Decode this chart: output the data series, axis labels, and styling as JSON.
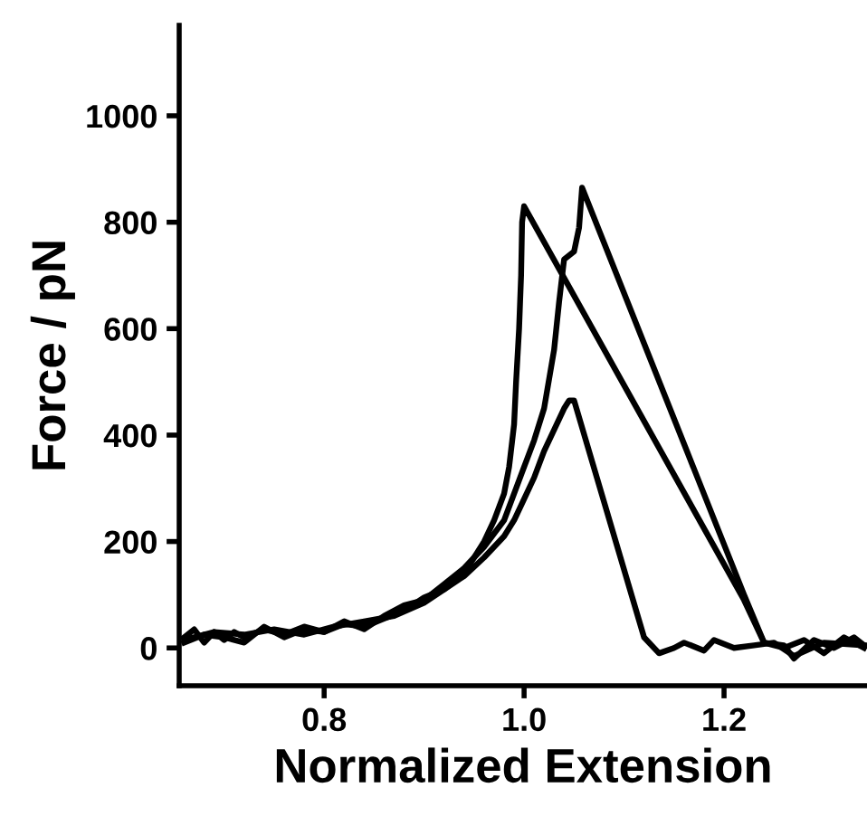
{
  "chart_data": {
    "type": "line",
    "xlabel": "Normalized Extension",
    "ylabel": "Force / pN",
    "xlim": [
      0.655,
      1.343
    ],
    "ylim": [
      -71,
      1170
    ],
    "xticks": [
      {
        "value": 0.8,
        "label": "0.8"
      },
      {
        "value": 1.0,
        "label": "1.0"
      },
      {
        "value": 1.2,
        "label": "1.2"
      }
    ],
    "yticks": [
      0,
      200,
      400,
      600,
      800,
      1000
    ],
    "grid": false,
    "legend": false,
    "marker": "none",
    "line_style": "solid",
    "series": [
      {
        "color": "#000000",
        "x": [
          0.66,
          0.67,
          0.68,
          0.69,
          0.7,
          0.71,
          0.72,
          0.74,
          0.76,
          0.78,
          0.8,
          0.82,
          0.84,
          0.86,
          0.88,
          0.9,
          0.92,
          0.94,
          0.95,
          0.96,
          0.97,
          0.98,
          0.985,
          0.99,
          0.992,
          0.995,
          0.997,
          0.998,
          1.0,
          1.22,
          1.24,
          1.26,
          1.27,
          1.29,
          1.31,
          1.33,
          1.34
        ],
        "values": [
          20,
          35,
          10,
          30,
          15,
          30,
          20,
          35,
          25,
          40,
          30,
          45,
          40,
          55,
          70,
          95,
          110,
          140,
          170,
          200,
          240,
          290,
          340,
          420,
          500,
          600,
          700,
          800,
          830,
          90,
          10,
          5,
          -20,
          15,
          0,
          20,
          5
        ]
      },
      {
        "color": "#000000",
        "x": [
          0.66,
          0.68,
          0.7,
          0.72,
          0.74,
          0.76,
          0.78,
          0.8,
          0.82,
          0.84,
          0.86,
          0.88,
          0.9,
          0.92,
          0.94,
          0.96,
          0.98,
          0.99,
          1.0,
          1.01,
          1.02,
          1.03,
          1.035,
          1.04,
          1.05,
          1.055,
          1.058,
          1.22,
          1.24,
          1.26,
          1.28,
          1.3,
          1.32,
          1.34
        ],
        "values": [
          10,
          25,
          20,
          10,
          40,
          20,
          35,
          30,
          50,
          35,
          60,
          80,
          90,
          120,
          150,
          190,
          240,
          290,
          340,
          390,
          450,
          560,
          650,
          730,
          745,
          790,
          865,
          100,
          10,
          0,
          15,
          -10,
          20,
          0
        ]
      },
      {
        "color": "#000000",
        "x": [
          0.66,
          0.69,
          0.72,
          0.75,
          0.78,
          0.81,
          0.84,
          0.87,
          0.9,
          0.92,
          0.94,
          0.96,
          0.98,
          0.99,
          1.0,
          1.01,
          1.02,
          1.03,
          1.04,
          1.045,
          1.05,
          1.12,
          1.135,
          1.15,
          1.16,
          1.18,
          1.19,
          1.21,
          1.23,
          1.25,
          1.27,
          1.3,
          1.34
        ],
        "values": [
          15,
          30,
          25,
          35,
          25,
          40,
          50,
          60,
          85,
          110,
          135,
          170,
          210,
          240,
          280,
          320,
          370,
          410,
          450,
          465,
          465,
          20,
          -10,
          0,
          10,
          -5,
          15,
          0,
          5,
          10,
          -15,
          10,
          5
        ]
      }
    ]
  }
}
